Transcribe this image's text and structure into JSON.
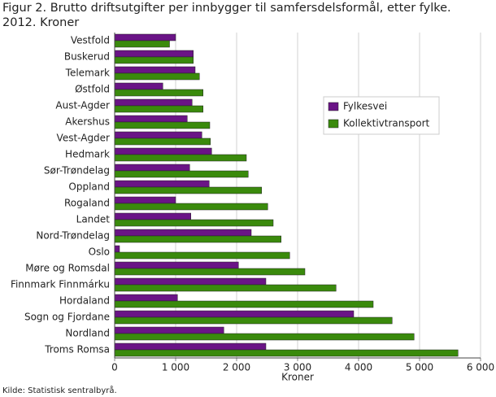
{
  "chart_data": {
    "type": "hbar",
    "title": [
      "Figur 2. Brutto driftsutgifter per innbygger til samfersdelsformål, etter fylke.",
      "2012. Kroner"
    ],
    "x_label": "Kroner",
    "source": "Kilde: Statistisk sentralbyrå.",
    "categories": [
      "Vestfold",
      "Buskerud",
      "Telemark",
      "Østfold",
      "Aust-Agder",
      "Akershus",
      "Vest-Agder",
      "Hedmark",
      "Sør-Trøndelag",
      "Oppland",
      "Rogaland",
      "Landet",
      "Nord-Trøndelag",
      "Oslo",
      "Møre og Romsdal",
      "Finnmark Finnmárku",
      "Hordaland",
      "Sogn og Fjordane",
      "Nordland",
      "Troms Romsa"
    ],
    "series": [
      {
        "name": "Fylkesvei",
        "color": "#6a1486",
        "values": [
          1000,
          1290,
          1320,
          790,
          1270,
          1190,
          1430,
          1590,
          1230,
          1550,
          1000,
          1250,
          2240,
          80,
          2030,
          2480,
          1030,
          3920,
          1790,
          2480
        ]
      },
      {
        "name": "Kollektivtransport",
        "color": "#3a8a0c",
        "values": [
          900,
          1290,
          1390,
          1450,
          1450,
          1560,
          1570,
          2160,
          2190,
          2410,
          2510,
          2600,
          2730,
          2870,
          3120,
          3630,
          4240,
          4550,
          4910,
          5630
        ]
      }
    ],
    "xlim": [
      0,
      6000
    ],
    "xticks": [
      0,
      {
        "value": 1000,
        "label": "1 000"
      },
      {
        "value": 2000,
        "label": "2 000"
      },
      {
        "value": 3000,
        "label": "3 000"
      },
      {
        "value": 4000,
        "label": "4 000"
      },
      {
        "value": 5000,
        "label": "5 000"
      },
      {
        "value": 6000,
        "label": "6 000"
      }
    ],
    "grid": true,
    "legend": "upper-right"
  }
}
